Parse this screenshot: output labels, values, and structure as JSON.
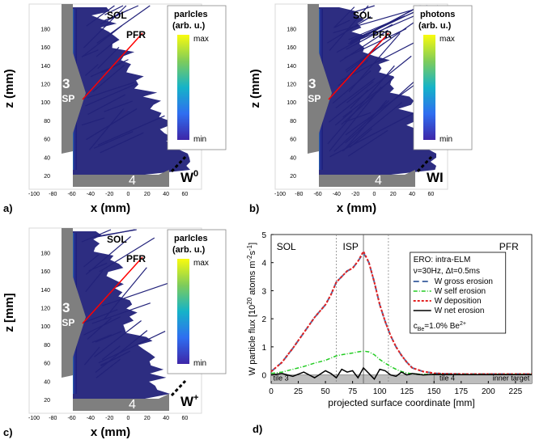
{
  "panels": [
    {
      "label": "a)",
      "xlabel": "x (mm)",
      "ylabel": "z (mm)",
      "colorbar": {
        "title": [
          "parlcles",
          "(arb. u.)"
        ],
        "max": "max",
        "min": "min"
      },
      "species": "W",
      "species_sup": "0",
      "region_sol": "SOL",
      "region_pfr": "PFR",
      "isp_number": "3",
      "isp_text": "ISP",
      "tile_number": "4",
      "xticks": [
        "-100",
        "-80",
        "-60",
        "-40",
        "-20",
        "0",
        "20",
        "40",
        "60"
      ],
      "yticks": [
        "20",
        "40",
        "60",
        "80",
        "100",
        "120",
        "140",
        "160",
        "180"
      ]
    },
    {
      "label": "b)",
      "xlabel": "x (mm)",
      "ylabel": "z (mm)",
      "colorbar": {
        "title": [
          "photons",
          "(arb. u.)"
        ],
        "max": "max",
        "min": "min"
      },
      "species": "WI",
      "species_sup": "",
      "region_sol": "SOL",
      "region_pfr": "PFR",
      "isp_number": "3",
      "isp_text": "ISP",
      "tile_number": "4",
      "xticks": [
        "-100",
        "-80",
        "-60",
        "-40",
        "-20",
        "0",
        "20",
        "40",
        "60"
      ],
      "yticks": [
        "20",
        "40",
        "60",
        "80",
        "100",
        "120",
        "140",
        "160",
        "180"
      ]
    },
    {
      "label": "c)",
      "xlabel": "x (mm)",
      "ylabel": "z [mm]",
      "colorbar": {
        "title": [
          "parlcles",
          "(arb. u.)"
        ],
        "max": "max",
        "min": "min"
      },
      "species": "W",
      "species_sup": "+",
      "region_sol": "SOL",
      "region_pfr": "PFR",
      "isp_number": "3",
      "isp_text": "ISP",
      "tile_number": "4",
      "xticks": [
        "-100",
        "-80",
        "-60",
        "-40",
        "-20",
        "0",
        "20",
        "40",
        "60"
      ],
      "yticks": [
        "20",
        "40",
        "60",
        "80",
        "100",
        "120",
        "140",
        "160",
        "180"
      ]
    }
  ],
  "panel_d": {
    "label": "d)",
    "xlabel": "projected surface coordinate [mm]",
    "ylabel_parts": [
      "W particle flux [10",
      "20",
      " atoms m",
      "-2",
      "s",
      "-1",
      "]"
    ],
    "regions": {
      "sol": "SOL",
      "isp": "ISP",
      "pfr": "PFR"
    },
    "tiles": {
      "tile3": "tile 3",
      "tile4": "tile 4",
      "inner": "inner target"
    },
    "legend": {
      "title1": "ERO: intra-ELM",
      "title2": "ν=30Hz, Δt=0.5ms",
      "entries": [
        "W gross erosion",
        "W self erosion",
        "W deposition",
        "W net erosion"
      ],
      "footer": "c",
      "footer_sub": "Be",
      "footer_rest": "=1.0% Be",
      "footer_sup": "2+"
    },
    "xticks": [
      "0",
      "25",
      "50",
      "75",
      "100",
      "125",
      "150",
      "175",
      "200",
      "225"
    ],
    "yticks": [
      "0",
      "1",
      "2",
      "3",
      "4",
      "5"
    ]
  },
  "colors": {
    "gross": "#4f6fa8",
    "self": "#22cc22",
    "deposition": "#e32020",
    "net": "#000000",
    "plasma": "#22227a",
    "tile": "#7f7f7f",
    "sep": "#ff0000"
  },
  "chart_data": {
    "type": "line",
    "title": "",
    "xlabel": "projected surface coordinate [mm]",
    "ylabel": "W particle flux [10^20 atoms m^-2 s^-1]",
    "xlim": [
      0,
      240
    ],
    "ylim": [
      -0.3,
      5
    ],
    "x": [
      0,
      10,
      20,
      30,
      40,
      50,
      55,
      60,
      65,
      70,
      75,
      80,
      85,
      90,
      95,
      100,
      105,
      110,
      115,
      120,
      125,
      130,
      140,
      150,
      160,
      180,
      200,
      220,
      240
    ],
    "series": [
      {
        "name": "W gross erosion",
        "values": [
          0.12,
          0.45,
          0.95,
          1.5,
          2.05,
          2.5,
          2.85,
          3.3,
          3.5,
          3.7,
          3.8,
          4.05,
          4.35,
          4.0,
          3.3,
          2.5,
          1.9,
          1.4,
          1.0,
          0.7,
          0.45,
          0.25,
          0.12,
          0.06,
          0.04,
          0.03,
          0.03,
          0.03,
          0.03
        ]
      },
      {
        "name": "W self erosion",
        "values": [
          0.05,
          0.1,
          0.2,
          0.3,
          0.42,
          0.52,
          0.6,
          0.68,
          0.72,
          0.75,
          0.78,
          0.82,
          0.85,
          0.82,
          0.72,
          0.55,
          0.42,
          0.3,
          0.2,
          0.12,
          0.07,
          0.04,
          0.02,
          0.02,
          0.02,
          0.02,
          0.02,
          0.02,
          0.02
        ]
      },
      {
        "name": "W deposition",
        "values": [
          0.12,
          0.45,
          0.95,
          1.5,
          2.05,
          2.5,
          2.85,
          3.3,
          3.5,
          3.7,
          3.8,
          4.05,
          4.4,
          4.0,
          3.3,
          2.5,
          1.9,
          1.4,
          1.0,
          0.7,
          0.45,
          0.25,
          0.12,
          0.06,
          0.04,
          0.03,
          0.03,
          0.03,
          0.03
        ]
      },
      {
        "name": "W net erosion",
        "values": [
          0.0,
          0.05,
          -0.05,
          0.1,
          -0.1,
          0.15,
          0.05,
          -0.1,
          0.2,
          0.1,
          0.15,
          -0.1,
          0.25,
          0.05,
          -0.15,
          0.2,
          0.15,
          0.0,
          -0.05,
          0.1,
          0.0,
          0.05,
          0.0,
          0.02,
          0.01,
          0.01,
          0.01,
          0.01,
          0.01
        ]
      }
    ],
    "vlines": [
      60,
      85,
      108
    ],
    "legend_position": "top-right"
  }
}
